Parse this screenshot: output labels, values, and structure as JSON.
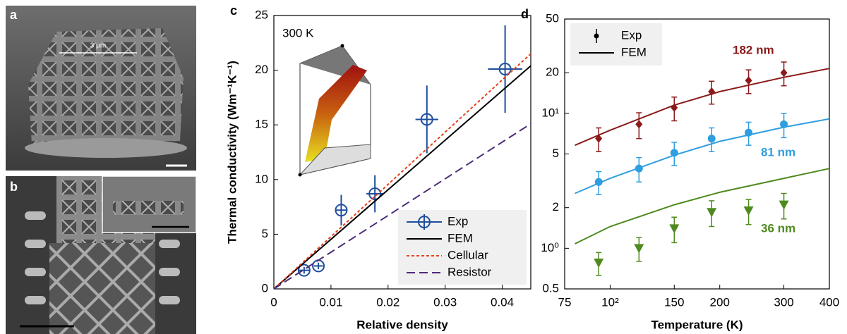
{
  "images": [
    {
      "label": "a",
      "scale": "3 µm"
    },
    {
      "label": "b"
    }
  ],
  "chart_data": [
    {
      "type": "errorbar-line",
      "panel": "c",
      "annotation": "300 K",
      "x_label": "Relative density",
      "y_label": "Thermal conductivity (Wm⁻¹K⁻¹)",
      "xlim": [
        0,
        0.045
      ],
      "xticks": [
        0,
        0.01,
        0.02,
        0.03,
        0.04
      ],
      "ylim": [
        0,
        25
      ],
      "yticks": [
        0,
        5,
        10,
        15,
        20,
        25
      ],
      "legend": "lower right",
      "series": [
        {
          "name": "Exp",
          "color": "#1f4e9c",
          "style": "errorbar",
          "x": [
            0.0053,
            0.0078,
            0.0118,
            0.0177,
            0.0268,
            0.0405
          ],
          "values": [
            1.7,
            2.1,
            7.2,
            8.7,
            15.5,
            20.1
          ],
          "xerr": [
            0.001,
            0.0008,
            0.001,
            0.0015,
            0.002,
            0.003
          ],
          "yerr": [
            0.3,
            0.3,
            1.4,
            1.7,
            3.1,
            4.0
          ]
        },
        {
          "name": "FEM",
          "color": "#000000",
          "style": "solid",
          "x": [
            0,
            0.045
          ],
          "values": [
            0,
            20.4
          ]
        },
        {
          "name": "Cellular",
          "color": "#e8401c",
          "style": "dotted",
          "x": [
            0,
            0.045
          ],
          "values": [
            0,
            21.5
          ]
        },
        {
          "name": "Resistor",
          "color": "#4b2c7a",
          "style": "dashed",
          "x": [
            0,
            0.045
          ],
          "values": [
            0,
            15.1
          ]
        }
      ]
    },
    {
      "type": "log-errorbar-line",
      "panel": "d",
      "x_label": "Temperature (K)",
      "xlog": true,
      "ylog": true,
      "xlim": [
        75,
        400
      ],
      "xticks": [
        75,
        {
          "value": 100,
          "label": "10²"
        },
        150,
        200,
        300,
        400
      ],
      "ylim": [
        0.5,
        50
      ],
      "yticks": [
        0.5,
        {
          "value": 1,
          "label": "10⁰"
        },
        2,
        5,
        {
          "value": 10,
          "label": "10¹"
        },
        20,
        50
      ],
      "legend": "upper left",
      "legend_entries": [
        {
          "label": "Exp",
          "style": "errorbar"
        },
        {
          "label": "FEM",
          "style": "solid"
        }
      ],
      "groups": [
        {
          "name": "182 nm",
          "color": "#8b1a1a",
          "marker": "diamond",
          "exp": {
            "x": [
              93,
              120,
              150,
              190,
              240,
              300
            ],
            "values": [
              6.5,
              8.3,
              11,
              14.5,
              17.5,
              20
            ],
            "errors": [
              1.3,
              1.8,
              2.2,
              2.8,
              3.5,
              4
            ]
          },
          "fem": {
            "x": [
              80,
              100,
              150,
              200,
              300,
              400
            ],
            "values": [
              5.8,
              7.5,
              11.5,
              14.5,
              18.5,
              21.5
            ]
          }
        },
        {
          "name": "81 nm",
          "color": "#2e9ee0",
          "marker": "circle",
          "exp": {
            "x": [
              93,
              120,
              150,
              190,
              240,
              300
            ],
            "values": [
              3.1,
              3.9,
              5.1,
              6.5,
              7.2,
              8.3
            ],
            "errors": [
              0.6,
              0.8,
              1,
              1.3,
              1.4,
              1.7
            ]
          },
          "fem": {
            "x": [
              80,
              100,
              150,
              200,
              300,
              400
            ],
            "values": [
              2.55,
              3.3,
              4.9,
              6.2,
              7.9,
              9.1
            ]
          }
        },
        {
          "name": "36 nm",
          "color": "#4f8a1f",
          "marker": "triangle-down",
          "exp": {
            "x": [
              93,
              120,
              150,
              190,
              240,
              300
            ],
            "values": [
              0.78,
              1.0,
              1.4,
              1.85,
              1.9,
              2.1
            ],
            "errors": [
              0.15,
              0.2,
              0.3,
              0.4,
              0.4,
              0.45
            ]
          },
          "fem": {
            "x": [
              80,
              100,
              150,
              200,
              300,
              400
            ],
            "values": [
              1.08,
              1.45,
              2.1,
              2.6,
              3.3,
              3.9
            ]
          }
        }
      ]
    }
  ]
}
